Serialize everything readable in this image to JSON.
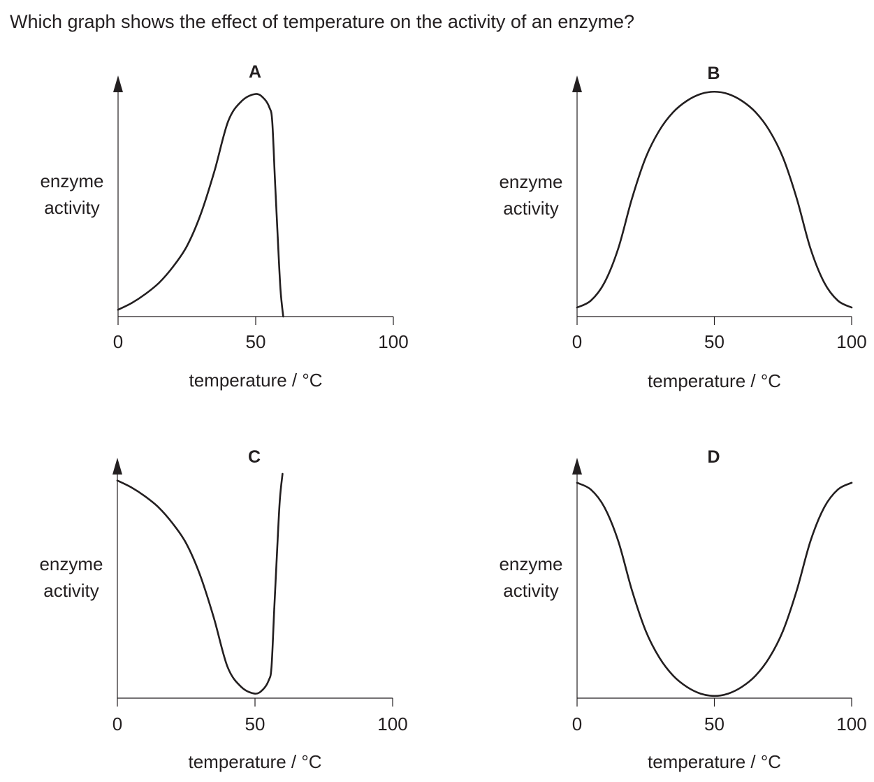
{
  "question": "Which graph shows the effect of temperature on the activity of an enzyme?",
  "colors": {
    "ink": "#231f20",
    "background": "#ffffff"
  },
  "chart_data": [
    {
      "type": "line",
      "panel": "A",
      "ylabel_lines": [
        "enzyme",
        "activity"
      ],
      "xlabel": "temperature / °C",
      "xticks": [
        "0",
        "50",
        "100"
      ],
      "xlim": [
        0,
        100
      ],
      "ylim": [
        0,
        1
      ],
      "grid": false,
      "series": [
        {
          "x": [
            0,
            5,
            10,
            15,
            20,
            25,
            30,
            35,
            40,
            45,
            50,
            53,
            55,
            56,
            57,
            58,
            59,
            60
          ],
          "y": [
            0.03,
            0.06,
            0.1,
            0.15,
            0.22,
            0.31,
            0.45,
            0.64,
            0.86,
            0.95,
            0.98,
            0.96,
            0.92,
            0.86,
            0.6,
            0.35,
            0.12,
            0.0
          ]
        }
      ]
    },
    {
      "type": "line",
      "panel": "B",
      "ylabel_lines": [
        "enzyme",
        "activity"
      ],
      "xlabel": "temperature / °C",
      "xticks": [
        "0",
        "50",
        "100"
      ],
      "xlim": [
        0,
        100
      ],
      "ylim": [
        0,
        1
      ],
      "grid": false,
      "series": [
        {
          "x": [
            0,
            5,
            10,
            15,
            20,
            25,
            30,
            35,
            40,
            45,
            50,
            55,
            60,
            65,
            70,
            75,
            80,
            85,
            90,
            95,
            100
          ],
          "y": [
            0.04,
            0.07,
            0.15,
            0.3,
            0.52,
            0.7,
            0.82,
            0.9,
            0.95,
            0.98,
            0.99,
            0.98,
            0.95,
            0.9,
            0.82,
            0.7,
            0.52,
            0.3,
            0.15,
            0.07,
            0.04
          ]
        }
      ]
    },
    {
      "type": "line",
      "panel": "C",
      "ylabel_lines": [
        "enzyme",
        "activity"
      ],
      "xlabel": "temperature / °C",
      "xticks": [
        "0",
        "50",
        "100"
      ],
      "xlim": [
        0,
        100
      ],
      "ylim": [
        0,
        1
      ],
      "grid": false,
      "series": [
        {
          "x": [
            0,
            5,
            10,
            15,
            20,
            25,
            30,
            35,
            40,
            45,
            50,
            53,
            55,
            56,
            57,
            58,
            59,
            60
          ],
          "y": [
            0.97,
            0.94,
            0.9,
            0.85,
            0.78,
            0.69,
            0.55,
            0.36,
            0.14,
            0.05,
            0.02,
            0.04,
            0.08,
            0.14,
            0.4,
            0.65,
            0.88,
            1.0
          ]
        }
      ]
    },
    {
      "type": "line",
      "panel": "D",
      "ylabel_lines": [
        "enzyme",
        "activity"
      ],
      "xlabel": "temperature / °C",
      "xticks": [
        "0",
        "50",
        "100"
      ],
      "xlim": [
        0,
        100
      ],
      "ylim": [
        0,
        1
      ],
      "grid": false,
      "series": [
        {
          "x": [
            0,
            5,
            10,
            15,
            20,
            25,
            30,
            35,
            40,
            45,
            50,
            55,
            60,
            65,
            70,
            75,
            80,
            85,
            90,
            95,
            100
          ],
          "y": [
            0.96,
            0.93,
            0.85,
            0.7,
            0.48,
            0.3,
            0.18,
            0.1,
            0.05,
            0.02,
            0.01,
            0.02,
            0.05,
            0.1,
            0.18,
            0.3,
            0.48,
            0.7,
            0.85,
            0.93,
            0.96
          ]
        }
      ]
    }
  ]
}
